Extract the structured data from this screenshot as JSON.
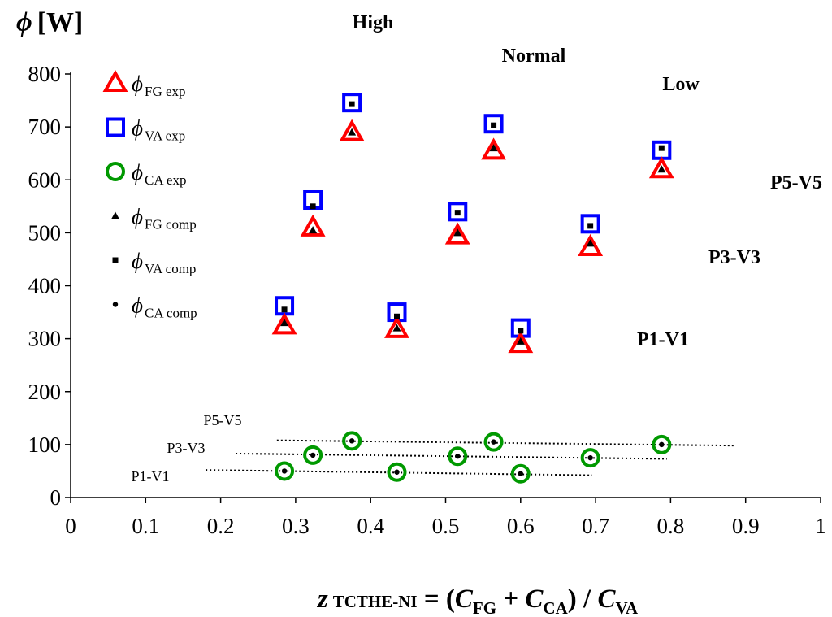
{
  "chart_data": {
    "type": "scatter",
    "title": "",
    "ylabel": {
      "symbol": "ϕ",
      "unit": "[W]"
    },
    "xlabel": {
      "z": "z",
      "z_sub": "TCTHE-NI",
      "eq_open": " = (",
      "c1": "C",
      "c1_sub": "FG",
      "plus": " + ",
      "c2": "C",
      "c2_sub": "CA",
      "close": ") / ",
      "c3": "C",
      "c3_sub": "VA"
    },
    "xlim": [
      0,
      1
    ],
    "ylim": [
      0,
      800
    ],
    "x_ticks": [
      "0",
      "0.1",
      "0.2",
      "0.3",
      "0.4",
      "0.5",
      "0.6",
      "0.7",
      "0.8",
      "0.9",
      "1"
    ],
    "y_ticks": [
      "0",
      "100",
      "200",
      "300",
      "400",
      "500",
      "600",
      "700",
      "800"
    ],
    "grid": false,
    "legend_position": "top-left",
    "colors": {
      "fg": "#ff0000",
      "va": "#0000ff",
      "ca": "#009900",
      "comp": "#000000"
    },
    "series": [
      {
        "key": "fg_exp",
        "symbol": "ϕ",
        "sub": "FG exp",
        "marker": "triangle-open",
        "x": [
          0.285,
          0.435,
          0.6,
          0.323,
          0.516,
          0.693,
          0.375,
          0.564,
          0.788
        ],
        "y": [
          325,
          318,
          290,
          510,
          495,
          473,
          690,
          655,
          620
        ]
      },
      {
        "key": "va_exp",
        "symbol": "ϕ",
        "sub": "VA exp",
        "marker": "square-open",
        "x": [
          0.285,
          0.435,
          0.6,
          0.323,
          0.516,
          0.693,
          0.375,
          0.564,
          0.788
        ],
        "y": [
          362,
          350,
          320,
          562,
          540,
          517,
          746,
          706,
          656
        ]
      },
      {
        "key": "ca_exp",
        "symbol": "ϕ",
        "sub": "CA exp",
        "marker": "circle-open",
        "x": [
          0.285,
          0.435,
          0.6,
          0.323,
          0.516,
          0.693,
          0.375,
          0.564,
          0.788
        ],
        "y": [
          50,
          48,
          45,
          80,
          78,
          75,
          107,
          105,
          100
        ]
      },
      {
        "key": "fg_comp",
        "symbol": "ϕ",
        "sub": "FG comp",
        "marker": "triangle-filled",
        "x": [
          0.285,
          0.435,
          0.6,
          0.323,
          0.516,
          0.693,
          0.375,
          0.564,
          0.788
        ],
        "y": [
          330,
          320,
          295,
          505,
          500,
          480,
          690,
          660,
          620
        ]
      },
      {
        "key": "va_comp",
        "symbol": "ϕ",
        "sub": "VA comp",
        "marker": "square-filled",
        "x": [
          0.285,
          0.435,
          0.6,
          0.323,
          0.516,
          0.693,
          0.375,
          0.564,
          0.788
        ],
        "y": [
          355,
          342,
          315,
          550,
          538,
          513,
          743,
          703,
          660
        ]
      },
      {
        "key": "ca_comp",
        "symbol": "ϕ",
        "sub": "CA comp",
        "marker": "circle-filled",
        "x": [
          0.285,
          0.435,
          0.6,
          0.323,
          0.516,
          0.693,
          0.375,
          0.564,
          0.788
        ],
        "y": [
          50,
          48,
          45,
          80,
          78,
          75,
          107,
          105,
          100
        ]
      }
    ],
    "trend_lines": [
      {
        "label": "P1-V1",
        "x": [
          0.18,
          0.695
        ],
        "y": [
          52,
          42
        ]
      },
      {
        "label": "P3-V3",
        "x": [
          0.22,
          0.795
        ],
        "y": [
          83,
          73
        ]
      },
      {
        "label": "P5-V5",
        "x": [
          0.275,
          0.885
        ],
        "y": [
          108,
          98
        ]
      }
    ],
    "annotations": {
      "high": "High",
      "normal": "Normal",
      "low": "Low",
      "p5v5": "P5-V5",
      "p3v3": "P3-V3",
      "p1v1": "P1-V1"
    }
  }
}
